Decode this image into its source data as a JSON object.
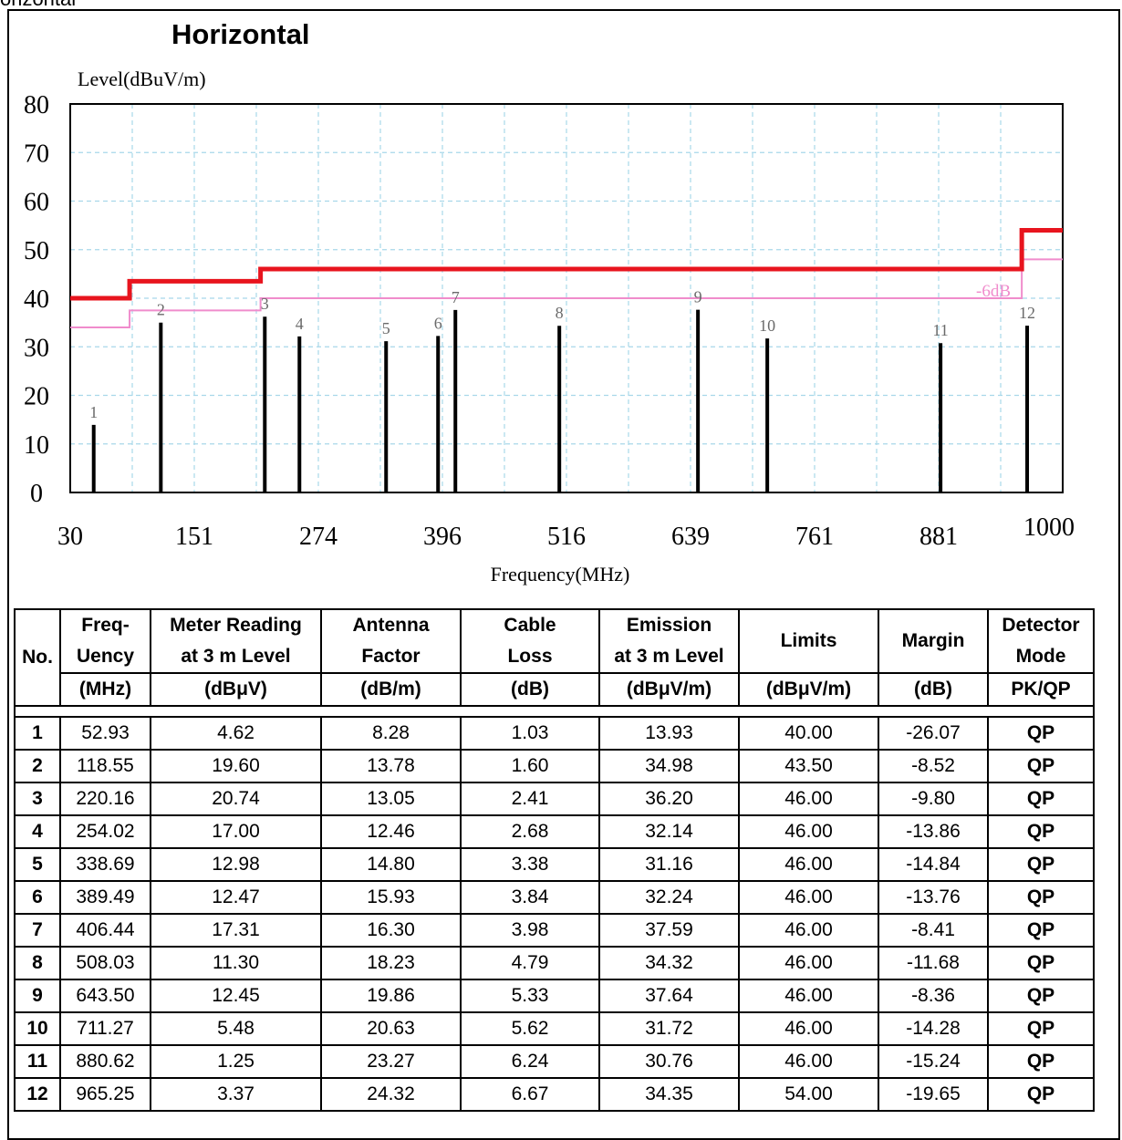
{
  "partial_label": "orizontal",
  "title": "Horizontal",
  "chart_data": {
    "type": "bar",
    "ylabel": "Level(dBuV/m)",
    "xlabel": "Frequency(MHz)",
    "ylim": [
      0,
      80
    ],
    "xlim": [
      30,
      1000
    ],
    "yticks": [
      "0",
      "10",
      "20",
      "30",
      "40",
      "50",
      "60",
      "70",
      "80"
    ],
    "xticks": [
      30,
      151,
      274,
      396,
      516,
      639,
      761,
      881,
      1000
    ],
    "grid": true,
    "limit_line": {
      "color": "#e8141e",
      "points": [
        [
          30,
          40
        ],
        [
          88,
          40
        ],
        [
          88,
          43.5
        ],
        [
          216,
          43.5
        ],
        [
          216,
          46
        ],
        [
          960,
          46
        ],
        [
          960,
          54
        ],
        [
          1000,
          54
        ]
      ]
    },
    "margin_line": {
      "label": "-6dB",
      "color": "#f08ccc",
      "points": [
        [
          30,
          34
        ],
        [
          88,
          34
        ],
        [
          88,
          37.5
        ],
        [
          216,
          37.5
        ],
        [
          216,
          40
        ],
        [
          960,
          40
        ],
        [
          960,
          48
        ],
        [
          1000,
          48
        ]
      ]
    },
    "bars": {
      "color": "#000000",
      "x": [
        52.93,
        118.55,
        220.16,
        254.02,
        338.69,
        389.49,
        406.44,
        508.03,
        643.5,
        711.27,
        880.62,
        965.25
      ],
      "values": [
        13.93,
        34.98,
        36.2,
        32.14,
        31.16,
        32.24,
        37.59,
        34.32,
        37.64,
        31.72,
        30.76,
        34.35
      ],
      "labels": [
        "1",
        "2",
        "3",
        "4",
        "5",
        "6",
        "7",
        "8",
        "9",
        "10",
        "11",
        "12"
      ]
    }
  },
  "table": {
    "headers": [
      {
        "line1": "No.",
        "line2": ""
      },
      {
        "line1": "Freq-\nUency",
        "line2": "(MHz)"
      },
      {
        "line1": "Meter Reading\nat 3 m Level",
        "line2": "(dBμV)"
      },
      {
        "line1": "Antenna\nFactor",
        "line2": "(dB/m)"
      },
      {
        "line1": "Cable\nLoss",
        "line2": "(dB)"
      },
      {
        "line1": "Emission\nat 3 m Level",
        "line2": "(dBμV/m)"
      },
      {
        "line1": "Limits",
        "line2": "(dBμV/m)"
      },
      {
        "line1": "Margin",
        "line2": "(dB)"
      },
      {
        "line1": "Detector\nMode",
        "line2": "PK/QP"
      }
    ],
    "rows": [
      [
        "1",
        "52.93",
        "4.62",
        "8.28",
        "1.03",
        "13.93",
        "40.00",
        "-26.07",
        "QP"
      ],
      [
        "2",
        "118.55",
        "19.60",
        "13.78",
        "1.60",
        "34.98",
        "43.50",
        "-8.52",
        "QP"
      ],
      [
        "3",
        "220.16",
        "20.74",
        "13.05",
        "2.41",
        "36.20",
        "46.00",
        "-9.80",
        "QP"
      ],
      [
        "4",
        "254.02",
        "17.00",
        "12.46",
        "2.68",
        "32.14",
        "46.00",
        "-13.86",
        "QP"
      ],
      [
        "5",
        "338.69",
        "12.98",
        "14.80",
        "3.38",
        "31.16",
        "46.00",
        "-14.84",
        "QP"
      ],
      [
        "6",
        "389.49",
        "12.47",
        "15.93",
        "3.84",
        "32.24",
        "46.00",
        "-13.76",
        "QP"
      ],
      [
        "7",
        "406.44",
        "17.31",
        "16.30",
        "3.98",
        "37.59",
        "46.00",
        "-8.41",
        "QP"
      ],
      [
        "8",
        "508.03",
        "11.30",
        "18.23",
        "4.79",
        "34.32",
        "46.00",
        "-11.68",
        "QP"
      ],
      [
        "9",
        "643.50",
        "12.45",
        "19.86",
        "5.33",
        "37.64",
        "46.00",
        "-8.36",
        "QP"
      ],
      [
        "10",
        "711.27",
        "5.48",
        "20.63",
        "5.62",
        "31.72",
        "46.00",
        "-14.28",
        "QP"
      ],
      [
        "11",
        "880.62",
        "1.25",
        "23.27",
        "6.24",
        "30.76",
        "46.00",
        "-15.24",
        "QP"
      ],
      [
        "12",
        "965.25",
        "3.37",
        "24.32",
        "6.67",
        "34.35",
        "54.00",
        "-19.65",
        "QP"
      ]
    ]
  }
}
